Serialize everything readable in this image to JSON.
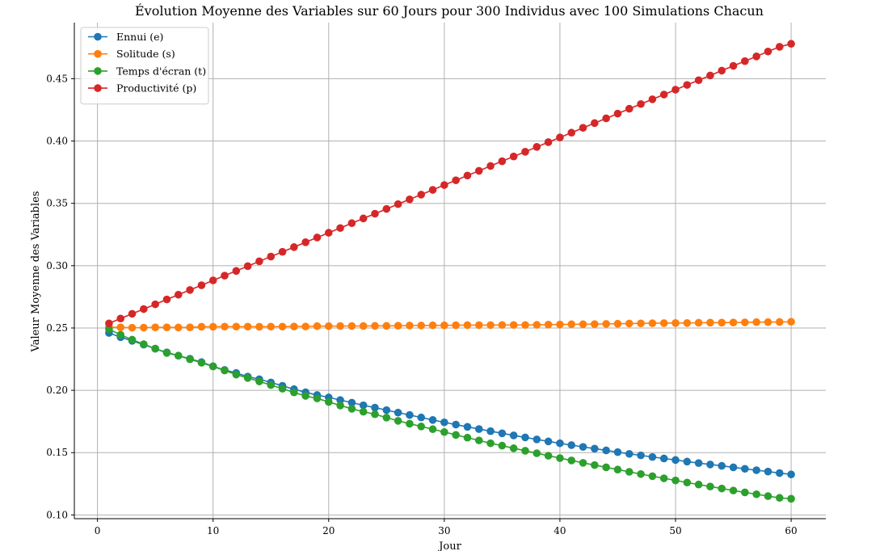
{
  "chart_data": {
    "type": "line",
    "title": "Évolution Moyenne des Variables sur 60 Jours pour 300 Individus avec 100 Simulations Chacun",
    "xlabel": "Jour",
    "ylabel": "Valeur Moyenne des Variables",
    "xlim": [
      -2,
      63
    ],
    "ylim": [
      0.097,
      0.495
    ],
    "xticks": [
      0,
      10,
      20,
      30,
      40,
      50,
      60
    ],
    "xtick_labels": [
      "0",
      "10",
      "20",
      "30",
      "40",
      "50",
      "60"
    ],
    "yticks": [
      0.1,
      0.15,
      0.2,
      0.25,
      0.3,
      0.35,
      0.4,
      0.45
    ],
    "ytick_labels": [
      "0.10",
      "0.15",
      "0.20",
      "0.25",
      "0.30",
      "0.35",
      "0.40",
      "0.45"
    ],
    "grid": true,
    "legend_position": "top-left",
    "x": [
      1,
      2,
      3,
      4,
      5,
      6,
      7,
      8,
      9,
      10,
      11,
      12,
      13,
      14,
      15,
      16,
      17,
      18,
      19,
      20,
      21,
      22,
      23,
      24,
      25,
      26,
      27,
      28,
      29,
      30,
      31,
      32,
      33,
      34,
      35,
      36,
      37,
      38,
      39,
      40,
      41,
      42,
      43,
      44,
      45,
      46,
      47,
      48,
      49,
      50,
      51,
      52,
      53,
      54,
      55,
      56,
      57,
      58,
      59,
      60
    ],
    "series": [
      {
        "name": "Ennui (e)",
        "color": "#1f77b4",
        "values": [
          0.246,
          0.2426,
          0.2397,
          0.2366,
          0.2334,
          0.2304,
          0.2278,
          0.2253,
          0.2226,
          0.2193,
          0.2163,
          0.2139,
          0.211,
          0.2089,
          0.2063,
          0.2036,
          0.2009,
          0.1984,
          0.1962,
          0.1943,
          0.1922,
          0.1901,
          0.188,
          0.1861,
          0.1841,
          0.1821,
          0.1802,
          0.1782,
          0.1762,
          0.1743,
          0.1725,
          0.1707,
          0.1689,
          0.1672,
          0.1655,
          0.1638,
          0.1622,
          0.1606,
          0.159,
          0.1575,
          0.156,
          0.1546,
          0.1532,
          0.1518,
          0.1504,
          0.149,
          0.1478,
          0.1465,
          0.1453,
          0.1441,
          0.1428,
          0.1416,
          0.1405,
          0.1394,
          0.1382,
          0.137,
          0.1359,
          0.1348,
          0.1336,
          0.1325
        ]
      },
      {
        "name": "Solitude (s)",
        "color": "#ff7f0e",
        "values": [
          0.2505,
          0.2505,
          0.2502,
          0.2503,
          0.2505,
          0.2505,
          0.2504,
          0.2505,
          0.251,
          0.251,
          0.2511,
          0.2511,
          0.2511,
          0.251,
          0.2511,
          0.2511,
          0.2512,
          0.2512,
          0.2515,
          0.2515,
          0.2516,
          0.2516,
          0.2516,
          0.2517,
          0.2517,
          0.2518,
          0.252,
          0.252,
          0.2521,
          0.2521,
          0.2522,
          0.2523,
          0.2523,
          0.2523,
          0.2524,
          0.2524,
          0.2524,
          0.2525,
          0.2527,
          0.2528,
          0.253,
          0.253,
          0.2531,
          0.2533,
          0.2534,
          0.2536,
          0.2537,
          0.2538,
          0.2539,
          0.254,
          0.254,
          0.2542,
          0.2543,
          0.2543,
          0.2544,
          0.2545,
          0.2547,
          0.2547,
          0.2548,
          0.255
        ]
      },
      {
        "name": "Temps d'écran (t)",
        "color": "#2ca02c",
        "values": [
          0.249,
          0.2445,
          0.2406,
          0.237,
          0.2334,
          0.23,
          0.2278,
          0.2249,
          0.2221,
          0.2191,
          0.2159,
          0.2126,
          0.2099,
          0.2071,
          0.2042,
          0.2013,
          0.1983,
          0.1955,
          0.1935,
          0.1907,
          0.1878,
          0.1852,
          0.1828,
          0.1808,
          0.1781,
          0.1755,
          0.1732,
          0.171,
          0.1688,
          0.1665,
          0.1642,
          0.162,
          0.1598,
          0.1575,
          0.1556,
          0.1535,
          0.1515,
          0.1495,
          0.1475,
          0.1456,
          0.1437,
          0.1418,
          0.14,
          0.1382,
          0.1364,
          0.1346,
          0.1328,
          0.1311,
          0.1294,
          0.1277,
          0.126,
          0.1244,
          0.1228,
          0.1212,
          0.1196,
          0.1181,
          0.1166,
          0.1151,
          0.1137,
          0.113
        ]
      },
      {
        "name": "Productivité (p)",
        "color": "#d62728",
        "values": [
          0.2537,
          0.2576,
          0.2614,
          0.2652,
          0.269,
          0.2729,
          0.2767,
          0.2805,
          0.2843,
          0.2882,
          0.292,
          0.2958,
          0.2996,
          0.3035,
          0.3073,
          0.3111,
          0.3149,
          0.3188,
          0.3226,
          0.3264,
          0.3302,
          0.3341,
          0.3379,
          0.3417,
          0.3455,
          0.3494,
          0.3532,
          0.357,
          0.3608,
          0.3647,
          0.3685,
          0.3723,
          0.3761,
          0.38,
          0.3838,
          0.3876,
          0.3914,
          0.3953,
          0.3991,
          0.4029,
          0.4067,
          0.4106,
          0.4144,
          0.4182,
          0.422,
          0.4259,
          0.4297,
          0.4335,
          0.4373,
          0.4412,
          0.445,
          0.4488,
          0.4526,
          0.4565,
          0.4603,
          0.4641,
          0.4679,
          0.4718,
          0.4756,
          0.478
        ]
      }
    ]
  }
}
